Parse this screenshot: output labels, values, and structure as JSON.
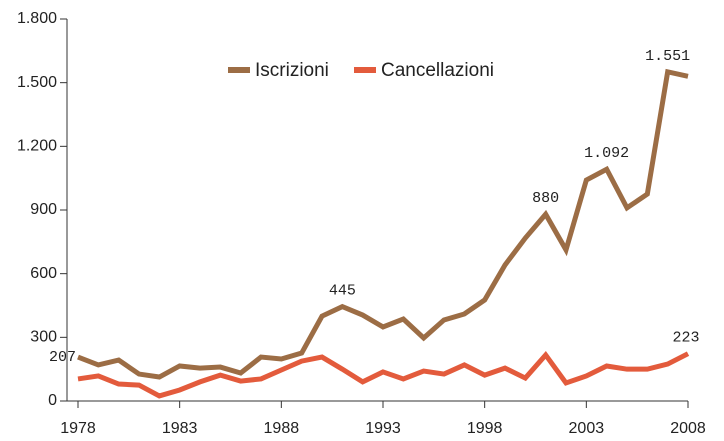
{
  "chart_data": {
    "type": "line",
    "x": [
      1978,
      1979,
      1980,
      1981,
      1982,
      1983,
      1984,
      1985,
      1986,
      1987,
      1988,
      1989,
      1990,
      1991,
      1992,
      1993,
      1994,
      1995,
      1996,
      1997,
      1998,
      1999,
      2000,
      2001,
      2002,
      2003,
      2004,
      2005,
      2006,
      2007,
      2008
    ],
    "series": [
      {
        "name": "Iscrizioni",
        "color": "#9c6d45",
        "values": [
          207,
          170,
          193,
          127,
          113,
          165,
          155,
          160,
          132,
          207,
          198,
          226,
          400,
          445,
          405,
          349,
          386,
          297,
          382,
          410,
          476,
          641,
          768,
          880,
          712,
          1041,
          1092,
          910,
          975,
          1551,
          1530
        ],
        "value_labels": [
          "207",
          null,
          null,
          null,
          null,
          null,
          null,
          null,
          null,
          null,
          null,
          null,
          null,
          "445",
          null,
          null,
          null,
          null,
          null,
          null,
          null,
          null,
          null,
          "880",
          null,
          null,
          "1.092",
          null,
          null,
          "1.551",
          null
        ]
      },
      {
        "name": "Cancellazioni",
        "color": "#e35b3c",
        "values": [
          104,
          118,
          80,
          75,
          24,
          52,
          90,
          122,
          94,
          104,
          146,
          188,
          207,
          150,
          90,
          137,
          104,
          141,
          127,
          170,
          122,
          155,
          108,
          217,
          85,
          118,
          165,
          150,
          150,
          174,
          223
        ],
        "value_labels": [
          null,
          null,
          null,
          null,
          null,
          null,
          null,
          null,
          null,
          null,
          null,
          null,
          null,
          null,
          null,
          null,
          null,
          null,
          null,
          null,
          null,
          null,
          null,
          null,
          null,
          null,
          null,
          null,
          null,
          null,
          "223"
        ]
      }
    ],
    "xlim": [
      1978,
      2008
    ],
    "xticks": [
      1978,
      1983,
      1988,
      1993,
      1998,
      2003,
      2008
    ],
    "ylim": [
      0,
      1800
    ],
    "yticks": [
      0,
      300,
      600,
      900,
      {
        "value": 1200,
        "label": "1.200"
      },
      {
        "value": 1500,
        "label": "1.500"
      },
      {
        "value": 1800,
        "label": "1.800"
      }
    ],
    "grid": false
  }
}
